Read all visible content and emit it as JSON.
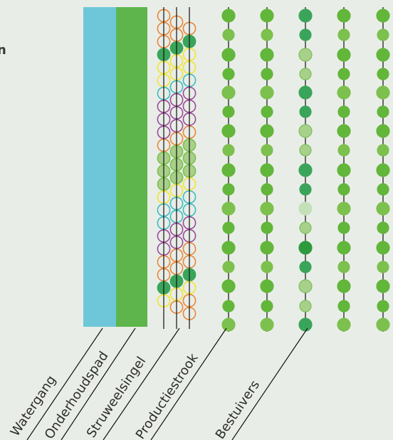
{
  "fragment_text": "n",
  "zones": [
    {
      "name": "Watergang",
      "color": "#6ec7d8"
    },
    {
      "name": "Onderhoudspad",
      "color": "#5db54c"
    },
    {
      "name": "Struweelsingel"
    },
    {
      "name": "Productiestrook"
    },
    {
      "name": "Bestuivers"
    }
  ],
  "colors": {
    "background": "#e9ede7",
    "orange": "#e8873a",
    "yellow": "#f0e530",
    "teal": "#3ebcc0",
    "purple": "#9a4c9a",
    "green_light": "#a8d08a",
    "green_mid": "#7cc04e",
    "green_dark": "#3aa55a",
    "green_bright": "#62b63a",
    "pale": "#c4e0b8"
  },
  "shrub_row_types": [
    "orange",
    "orange",
    "orange",
    "teal-fill",
    "yellow",
    "yellow",
    "teal",
    "purple",
    "purple",
    "purple",
    "orange",
    "green-light",
    "green-light",
    "green-light",
    "yellow",
    "teal",
    "teal",
    "purple",
    "purple",
    "orange",
    "orange",
    "dark-green",
    "yellow"
  ],
  "production_strips": 5,
  "pollinator_strip_pattern": [
    "dark",
    "dark",
    "light",
    "light",
    "dark",
    "dark",
    "light",
    "light",
    "dark",
    "dark",
    "pale",
    "light",
    "bright-dark",
    "dark",
    "light",
    "light",
    "dark"
  ]
}
